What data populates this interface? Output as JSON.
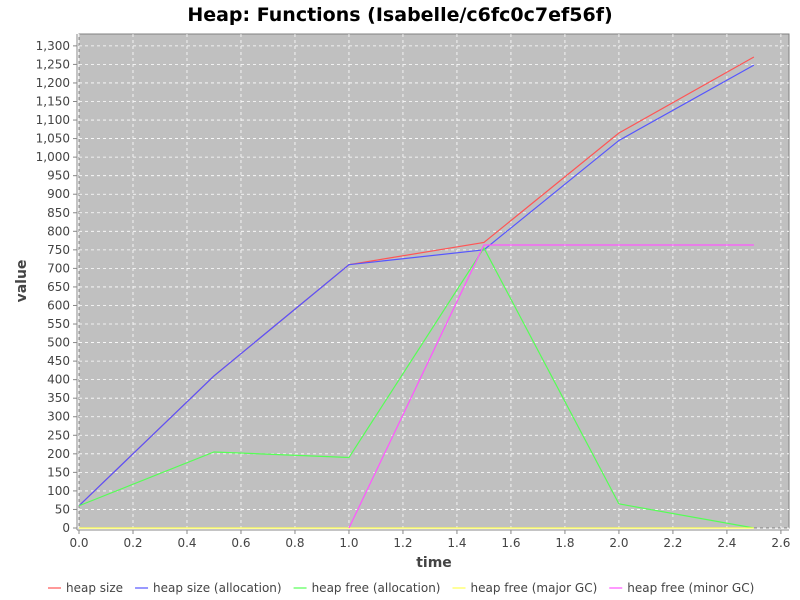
{
  "chart_data": {
    "type": "line",
    "title": "Heap: Functions (Isabelle/c6fc0c7ef56f)",
    "xlabel": "time",
    "ylabel": "value",
    "xlim": [
      0,
      2.63
    ],
    "ylim": [
      0,
      1332
    ],
    "grid": true,
    "legend_position": "bottom",
    "background": "#c0c0c0",
    "x_ticks": [
      "0.0",
      "0.2",
      "0.4",
      "0.6",
      "0.8",
      "1.0",
      "1.2",
      "1.4",
      "1.6",
      "1.8",
      "2.0",
      "2.2",
      "2.4",
      "2.6"
    ],
    "y_ticks": [
      "0",
      "50",
      "100",
      "150",
      "200",
      "250",
      "300",
      "350",
      "400",
      "450",
      "500",
      "550",
      "600",
      "650",
      "700",
      "750",
      "800",
      "850",
      "900",
      "950",
      "1,000",
      "1,050",
      "1,100",
      "1,150",
      "1,200",
      "1,250",
      "1,300"
    ],
    "series": [
      {
        "name": "heap size",
        "color": "#ff5555",
        "x": [
          0,
          0.5,
          1,
          1.5,
          2,
          2.5
        ],
        "values": [
          60,
          410,
          710,
          770,
          1065,
          1270
        ]
      },
      {
        "name": "heap size (allocation)",
        "color": "#5555ff",
        "x": [
          0,
          0.5,
          1,
          1.5,
          2,
          2.5
        ],
        "values": [
          60,
          410,
          710,
          750,
          1045,
          1248
        ]
      },
      {
        "name": "heap free (allocation)",
        "color": "#55ff55",
        "x": [
          0,
          0.5,
          1,
          1.5,
          2,
          2.5
        ],
        "values": [
          60,
          205,
          190,
          755,
          65,
          0
        ]
      },
      {
        "name": "heap free (major GC)",
        "color": "#ffff55",
        "x": [
          0,
          0.5,
          1,
          1.5,
          2,
          2.5
        ],
        "values": [
          0,
          0,
          0,
          0,
          0,
          0
        ]
      },
      {
        "name": "heap free (minor GC)",
        "color": "#ff55ff",
        "x": [
          1,
          1.5,
          2,
          2.5
        ],
        "values": [
          0,
          763,
          763,
          763
        ]
      }
    ]
  }
}
